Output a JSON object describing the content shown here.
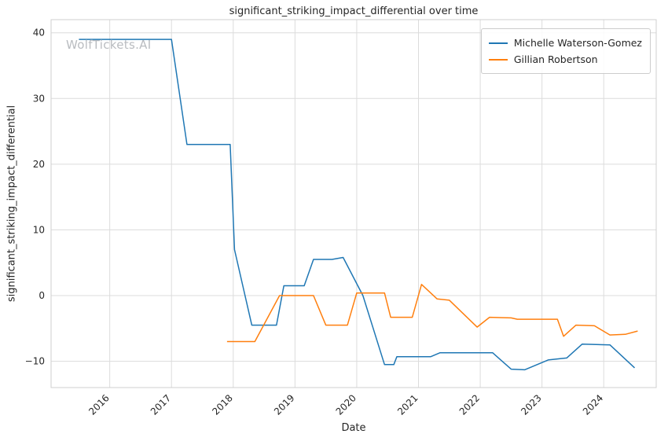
{
  "watermark": {
    "text": "WolfTickets.AI"
  },
  "chart_data": {
    "type": "line",
    "title": "significant_striking_impact_differential over time",
    "xlabel": "Date",
    "ylabel": "significant_striking_impact_differential",
    "grid": true,
    "legend_position": "upper right",
    "xlim": [
      2015.05,
      2024.85
    ],
    "ylim": [
      -14,
      42
    ],
    "xticks": [
      2016,
      2017,
      2018,
      2019,
      2020,
      2021,
      2022,
      2023,
      2024
    ],
    "xtick_labels": [
      "2016",
      "2017",
      "2018",
      "2019",
      "2020",
      "2021",
      "2022",
      "2023",
      "2024"
    ],
    "yticks": [
      -10,
      0,
      10,
      20,
      30,
      40
    ],
    "ytick_labels": [
      "−10",
      "0",
      "10",
      "20",
      "30",
      "40"
    ],
    "series": [
      {
        "name": "Michelle Waterson-Gomez",
        "color": "#1f77b4",
        "x": [
          2015.5,
          2017.0,
          2017.25,
          2017.95,
          2018.02,
          2018.3,
          2018.7,
          2018.82,
          2019.15,
          2019.3,
          2019.6,
          2019.78,
          2020.1,
          2020.45,
          2020.6,
          2020.65,
          2021.2,
          2021.35,
          2022.2,
          2022.5,
          2022.72,
          2023.1,
          2023.4,
          2023.65,
          2024.1,
          2024.5
        ],
        "y": [
          39,
          39,
          23,
          23,
          7,
          -4.5,
          -4.5,
          1.5,
          1.5,
          5.5,
          5.5,
          5.8,
          0,
          -10.5,
          -10.5,
          -9.3,
          -9.3,
          -8.7,
          -8.7,
          -11.2,
          -11.3,
          -9.8,
          -9.5,
          -7.4,
          -7.5,
          -11
        ]
      },
      {
        "name": "Gillian Robertson",
        "color": "#ff7f0e",
        "x": [
          2017.9,
          2018.35,
          2018.75,
          2019.3,
          2019.5,
          2019.85,
          2020.0,
          2020.45,
          2020.55,
          2020.9,
          2021.05,
          2021.3,
          2021.5,
          2021.95,
          2022.15,
          2022.5,
          2022.6,
          2023.25,
          2023.35,
          2023.55,
          2023.85,
          2024.1,
          2024.35,
          2024.55
        ],
        "y": [
          -7,
          -7,
          0,
          0,
          -4.5,
          -4.5,
          0.4,
          0.4,
          -3.3,
          -3.3,
          1.7,
          -0.5,
          -0.7,
          -4.8,
          -3.3,
          -3.4,
          -3.6,
          -3.6,
          -6.2,
          -4.5,
          -4.6,
          -6,
          -5.9,
          -5.4
        ]
      }
    ]
  }
}
